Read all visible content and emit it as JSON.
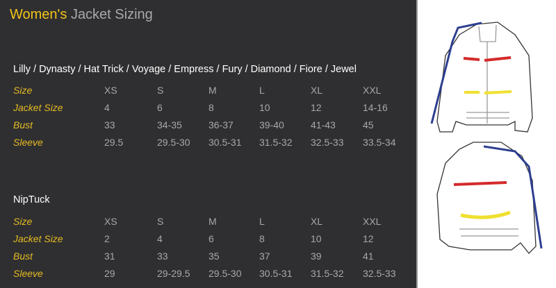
{
  "title": {
    "accent": "Women's",
    "rest": "Jacket Sizing"
  },
  "colors": {
    "background": "#2f2f31",
    "accent": "#f2c418",
    "label": "#e6bb22",
    "value": "#a8a8aa"
  },
  "tables": [
    {
      "heading": "Lilly / Dynasty / Hat Trick / Voyage / Empress / Fury / Diamond / Fiore / Jewel",
      "rows": [
        {
          "label": "Size",
          "values": [
            "XS",
            "S",
            "M",
            "L",
            "XL",
            "XXL"
          ]
        },
        {
          "label": "Jacket Size",
          "values": [
            "4",
            "6",
            "8",
            "10",
            "12",
            "14-16"
          ]
        },
        {
          "label": "Bust",
          "values": [
            "33",
            "34-35",
            "36-37",
            "39-40",
            "41-43",
            "45"
          ]
        },
        {
          "label": "Sleeve",
          "values": [
            "29.5",
            "29.5-30",
            "30.5-31",
            "31.5-32",
            "32.5-33",
            "33.5-34"
          ]
        }
      ]
    },
    {
      "heading": "NipTuck",
      "rows": [
        {
          "label": "Size",
          "values": [
            "XS",
            "S",
            "M",
            "L",
            "XL",
            "XXL"
          ]
        },
        {
          "label": "Jacket Size",
          "values": [
            "2",
            "4",
            "6",
            "8",
            "10",
            "12"
          ]
        },
        {
          "label": "Bust",
          "values": [
            "31",
            "33",
            "35",
            "37",
            "39",
            "41"
          ]
        },
        {
          "label": "Sleeve",
          "values": [
            "29",
            "29-29.5",
            "29.5-30",
            "30.5-31",
            "31.5-32",
            "32.5-33"
          ]
        }
      ]
    }
  ],
  "illustration": {
    "front": "jacket-front-icon",
    "back": "jacket-back-icon",
    "bust_color": "#d42a2a",
    "waist_color": "#f0e030",
    "sleeve_color": "#2e3f8f"
  }
}
